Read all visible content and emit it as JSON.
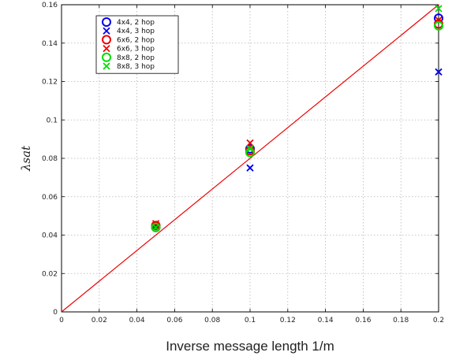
{
  "chart_data": {
    "type": "scatter",
    "xlabel": "Inverse message length 1/m",
    "ylabel": "λsat",
    "xlim": [
      0,
      0.2
    ],
    "ylim": [
      0,
      0.16
    ],
    "xticks": [
      "0",
      "0.02",
      "0.04",
      "0.06",
      "0.08",
      "0.1",
      "0.12",
      "0.14",
      "0.16",
      "0.18",
      "0.2"
    ],
    "yticks": [
      "0",
      "0.02",
      "0.04",
      "0.06",
      "0.08",
      "0.1",
      "0.12",
      "0.14",
      "0.16"
    ],
    "grid": true,
    "legend_position": "top-left",
    "series": [
      {
        "name": "4x4, 2 hop",
        "marker": "circle",
        "color": "#0000ee",
        "x": [
          0.05,
          0.1,
          0.2
        ],
        "y": [
          0.044,
          0.085,
          0.153
        ]
      },
      {
        "name": "4x4, 3 hop",
        "marker": "x",
        "color": "#0000ee",
        "x": [
          0.05,
          0.1,
          0.2
        ],
        "y": [
          0.045,
          0.075,
          0.125
        ]
      },
      {
        "name": "6x6, 2 hop",
        "marker": "circle",
        "color": "#ee0000",
        "x": [
          0.05,
          0.1,
          0.2
        ],
        "y": [
          0.045,
          0.084,
          0.15
        ]
      },
      {
        "name": "6x6, 3 hop",
        "marker": "x",
        "color": "#ee0000",
        "x": [
          0.05,
          0.1,
          0.2
        ],
        "y": [
          0.046,
          0.088,
          0.152
        ]
      },
      {
        "name": "8x8, 2 hop",
        "marker": "circle",
        "color": "#00dd00",
        "x": [
          0.05,
          0.1,
          0.2
        ],
        "y": [
          0.044,
          0.083,
          0.149
        ]
      },
      {
        "name": "8x8, 3 hop",
        "marker": "x",
        "color": "#00dd00",
        "x": [
          0.05,
          0.1,
          0.2
        ],
        "y": [
          0.044,
          0.085,
          0.158
        ]
      }
    ],
    "reference_line": {
      "color": "#ee0000",
      "x": [
        0,
        0.2
      ],
      "y": [
        0,
        0.16
      ]
    }
  }
}
